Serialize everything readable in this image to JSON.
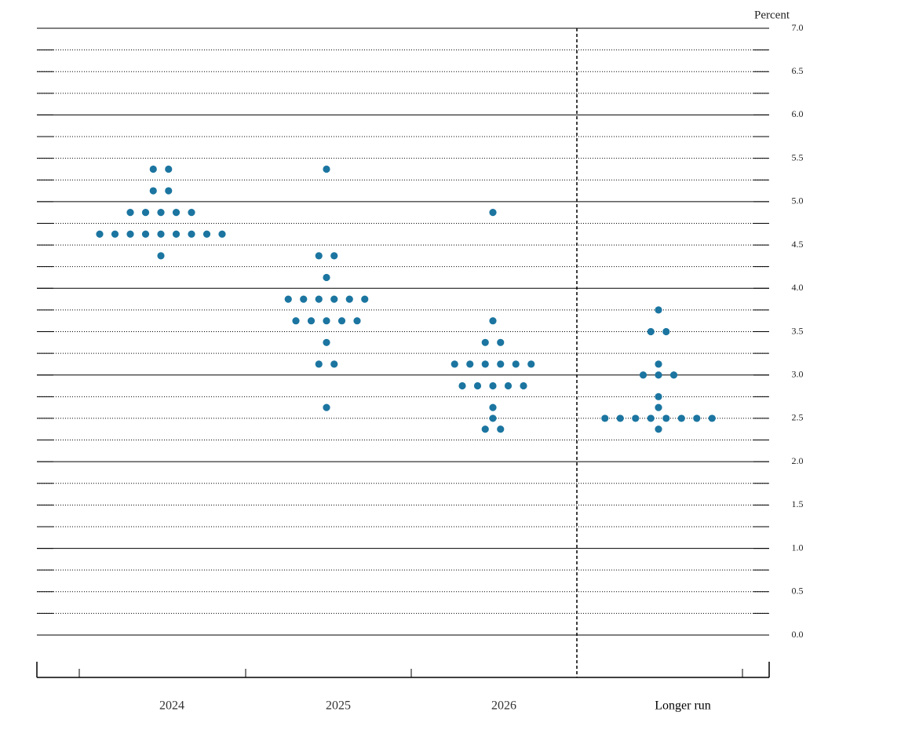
{
  "chart_data": {
    "type": "dot",
    "y_axis_label": "Percent",
    "categories": [
      "2024",
      "2025",
      "2026",
      "Longer run"
    ],
    "values": [
      [
        5.375,
        5.125,
        4.875,
        4.625,
        4.375
      ],
      [
        5.375,
        4.375,
        4.125,
        3.875,
        3.625,
        3.375,
        3.125,
        2.625
      ],
      [
        4.875,
        3.625,
        3.375,
        3.125,
        2.875,
        2.625,
        2.5,
        2.375
      ],
      [
        3.75,
        3.5,
        3.125,
        3.0,
        2.75,
        2.625,
        2.5,
        2.375
      ]
    ],
    "counts": [
      [
        2,
        2,
        5,
        9,
        1
      ],
      [
        1,
        2,
        1,
        6,
        5,
        1,
        2,
        1
      ],
      [
        1,
        1,
        2,
        6,
        5,
        1,
        1,
        2
      ],
      [
        1,
        2,
        1,
        3,
        1,
        1,
        8,
        1
      ]
    ],
    "color": "#1b75a0",
    "ylim": [
      0,
      7
    ],
    "yticks": [
      {
        "value": 0,
        "label": "0.0"
      },
      0.5,
      {
        "value": 1,
        "label": "1.0"
      },
      1.5,
      {
        "value": 2,
        "label": "2.0"
      },
      2.5,
      {
        "value": 3,
        "label": "3.0"
      },
      3.5,
      {
        "value": 4,
        "label": "4.0"
      },
      4.5,
      {
        "value": 5,
        "label": "5.0"
      },
      5.5,
      {
        "value": 6,
        "label": "6.0"
      },
      6.5,
      {
        "value": 7,
        "label": "7.0"
      }
    ],
    "minor_yticks": [
      0.25,
      0.75,
      1.25,
      1.75,
      2.25,
      2.75,
      3.25,
      3.75,
      4.25,
      4.75,
      5.25,
      5.75,
      6.25,
      6.75
    ],
    "grid": true
  }
}
